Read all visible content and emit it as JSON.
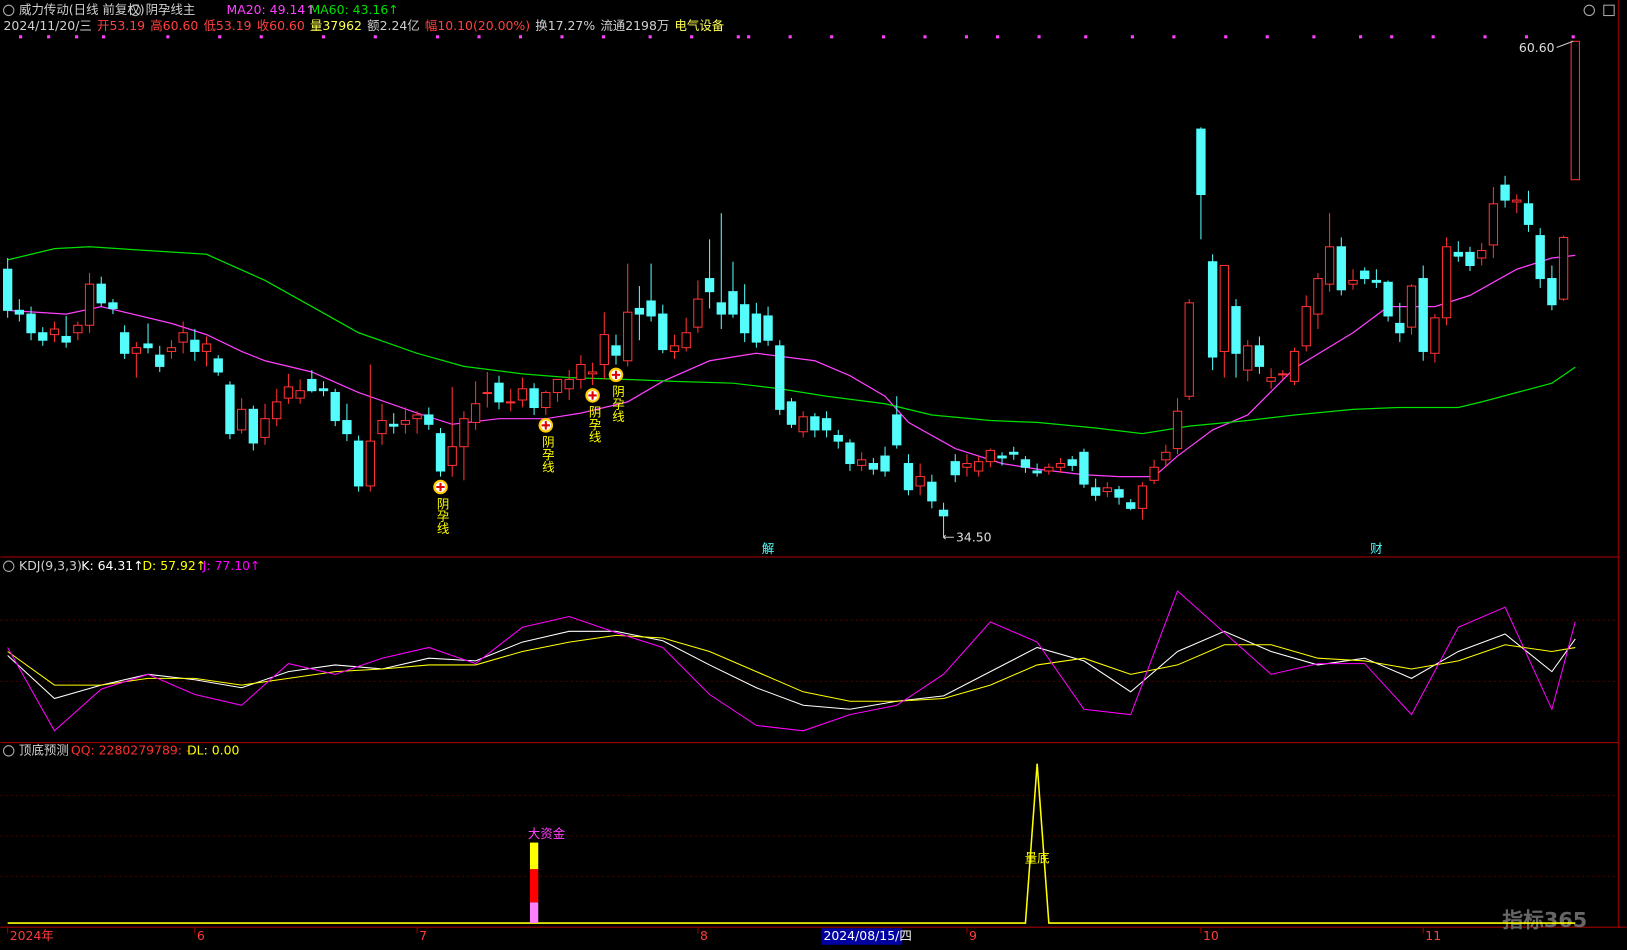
{
  "chart_data": [
    {
      "type": "candlestick",
      "title": "威力传动(日线 前复权)",
      "indicator": "阴孕线主",
      "info": [
        {
          "text": "2024/11/20/三",
          "color": "#d0d0d0"
        },
        {
          "text": "开53.19",
          "color": "#ff4040"
        },
        {
          "text": "高60.60",
          "color": "#ff4040"
        },
        {
          "text": "低53.19",
          "color": "#ff4040"
        },
        {
          "text": "收60.60",
          "color": "#ff4040"
        },
        {
          "text": "量37962",
          "color": "#ffff54"
        },
        {
          "text": "额2.24亿",
          "color": "#d0d0d0"
        },
        {
          "text": "幅10.10(20.00%)",
          "color": "#ff4040"
        },
        {
          "text": "换17.27%",
          "color": "#d0d0d0"
        },
        {
          "text": "流通2198万",
          "color": "#d0d0d0"
        },
        {
          "text": "电气设备",
          "color": "#ffff54"
        }
      ],
      "ylim": [
        33.5,
        61.7
      ],
      "up_color": "#ff3232",
      "down_color": "#54fcfc",
      "open": [
        48.4,
        46.2,
        46.0,
        45.0,
        44.9,
        44.8,
        45.0,
        45.4,
        47.6,
        46.6,
        45.0,
        43.9,
        44.4,
        43.8,
        44.0,
        44.5,
        44.6,
        44.0,
        43.6,
        42.2,
        39.8,
        40.9,
        39.4,
        40.4,
        41.5,
        41.5,
        42.5,
        42.0,
        41.8,
        40.3,
        39.2,
        36.8,
        39.6,
        40.1,
        40.1,
        40.4,
        40.6,
        39.6,
        37.9,
        38.9,
        40.2,
        41.8,
        42.3,
        41.3,
        41.4,
        42.0,
        41.0,
        41.8,
        42.0,
        42.5,
        42.8,
        43.3,
        44.3,
        43.5,
        46.3,
        46.7,
        46.0,
        44.0,
        44.2,
        45.3,
        47.9,
        46.6,
        47.2,
        46.5,
        46.0,
        45.9,
        44.3,
        41.3,
        39.7,
        40.5,
        40.4,
        39.5,
        39.1,
        37.9,
        38.0,
        38.4,
        40.6,
        38.0,
        36.8,
        37.0,
        35.5,
        38.1,
        37.8,
        37.6,
        38.1,
        38.4,
        38.6,
        38.2,
        37.6,
        37.6,
        37.8,
        38.2,
        38.6,
        36.7,
        36.5,
        36.6,
        35.9,
        35.6,
        37.1,
        38.2,
        38.8,
        41.6,
        55.9,
        48.8,
        44.0,
        46.4,
        43.0,
        44.3,
        42.4,
        42.8,
        42.4,
        44.3,
        46.0,
        47.6,
        49.6,
        47.6,
        48.3,
        47.8,
        47.7,
        45.5,
        45.3,
        47.9,
        43.9,
        45.8,
        49.3,
        49.3,
        49.0,
        49.7,
        52.9,
        52.0,
        51.9,
        50.2,
        47.9,
        46.8,
        53.19
      ],
      "high": [
        49.0,
        46.8,
        46.4,
        45.3,
        45.6,
        45.9,
        45.6,
        48.2,
        48.0,
        46.8,
        45.4,
        44.5,
        45.5,
        44.3,
        44.6,
        45.6,
        45.2,
        44.8,
        43.8,
        42.4,
        41.5,
        41.1,
        41.2,
        42.0,
        42.8,
        42.5,
        43.0,
        42.4,
        42.0,
        41.2,
        39.5,
        43.3,
        41.2,
        40.7,
        41.0,
        40.8,
        41.0,
        39.9,
        42.1,
        40.8,
        42.4,
        42.9,
        42.7,
        42.0,
        42.6,
        42.3,
        41.9,
        42.5,
        43.0,
        43.8,
        43.4,
        46.1,
        44.9,
        48.7,
        47.5,
        48.7,
        46.5,
        44.9,
        45.8,
        47.8,
        50.0,
        51.4,
        48.8,
        47.6,
        46.6,
        46.4,
        44.6,
        41.5,
        40.8,
        40.7,
        40.8,
        39.8,
        39.3,
        38.6,
        38.3,
        38.9,
        41.6,
        38.5,
        38.0,
        37.4,
        35.9,
        38.5,
        38.5,
        38.4,
        38.8,
        38.6,
        38.9,
        38.4,
        38.0,
        38.0,
        38.3,
        38.4,
        38.8,
        37.2,
        37.0,
        36.8,
        36.1,
        37.0,
        38.2,
        39.0,
        41.5,
        46.8,
        56.0,
        49.2,
        48.6,
        46.8,
        44.6,
        44.8,
        43.1,
        43.0,
        44.2,
        47.0,
        48.2,
        51.4,
        50.1,
        48.4,
        48.5,
        48.4,
        47.8,
        46.6,
        47.6,
        48.6,
        46.0,
        50.1,
        49.9,
        49.6,
        49.8,
        52.8,
        53.4,
        52.4,
        52.6,
        50.6,
        48.6,
        50.2,
        60.6
      ],
      "low": [
        45.8,
        45.6,
        44.6,
        44.3,
        44.5,
        44.2,
        44.6,
        45.0,
        46.4,
        46.0,
        43.6,
        42.6,
        43.9,
        42.9,
        43.6,
        43.9,
        43.5,
        43.2,
        42.7,
        39.3,
        39.6,
        38.7,
        39.0,
        40.0,
        41.2,
        41.2,
        41.8,
        41.6,
        40.0,
        39.2,
        36.5,
        36.5,
        39.0,
        39.6,
        39.6,
        39.6,
        39.8,
        37.3,
        37.3,
        37.1,
        39.8,
        41.0,
        40.9,
        40.8,
        41.0,
        40.6,
        40.6,
        41.3,
        41.4,
        42.0,
        42.2,
        42.5,
        43.3,
        43.2,
        44.6,
        45.6,
        43.9,
        43.6,
        44.0,
        45.0,
        46.3,
        45.2,
        45.8,
        44.5,
        44.2,
        44.3,
        40.6,
        39.9,
        39.4,
        39.4,
        39.4,
        38.8,
        37.6,
        37.6,
        37.4,
        37.3,
        38.8,
        36.3,
        36.3,
        35.6,
        34.5,
        37.0,
        37.3,
        37.3,
        37.8,
        37.9,
        38.2,
        37.5,
        37.3,
        37.4,
        37.5,
        37.6,
        36.7,
        36.0,
        36.2,
        35.8,
        35.5,
        35.0,
        36.9,
        37.8,
        38.5,
        41.4,
        50.0,
        43.0,
        42.6,
        42.6,
        42.4,
        42.8,
        42.0,
        42.5,
        42.2,
        44.0,
        45.2,
        47.2,
        47.0,
        47.3,
        47.6,
        47.4,
        45.6,
        44.5,
        44.9,
        43.5,
        43.4,
        45.4,
        48.8,
        48.3,
        48.6,
        49.0,
        51.7,
        51.4,
        50.4,
        47.4,
        46.2,
        46.7,
        53.19
      ],
      "close": [
        46.2,
        46.0,
        45.0,
        44.6,
        45.2,
        44.5,
        45.4,
        47.6,
        46.6,
        46.3,
        43.9,
        44.2,
        44.2,
        43.2,
        44.2,
        45.0,
        44.0,
        44.4,
        42.9,
        39.6,
        40.9,
        39.1,
        40.4,
        41.3,
        42.1,
        41.9,
        41.9,
        41.9,
        40.3,
        39.6,
        36.8,
        39.2,
        40.3,
        40.0,
        40.3,
        40.6,
        40.1,
        37.6,
        38.9,
        40.4,
        41.2,
        41.8,
        41.3,
        41.3,
        42.0,
        41.0,
        41.8,
        42.5,
        42.5,
        43.3,
        42.9,
        44.9,
        43.8,
        46.1,
        46.0,
        45.9,
        44.1,
        44.3,
        45.0,
        46.8,
        47.2,
        46.0,
        46.0,
        45.0,
        44.5,
        44.6,
        40.9,
        40.1,
        40.5,
        39.8,
        39.8,
        39.2,
        38.0,
        38.2,
        37.7,
        37.6,
        39.0,
        36.6,
        37.3,
        36.0,
        35.2,
        37.4,
        38.0,
        38.1,
        38.7,
        38.3,
        38.5,
        37.8,
        37.5,
        37.8,
        38.0,
        37.9,
        36.9,
        36.3,
        36.7,
        36.2,
        35.6,
        36.8,
        37.8,
        38.6,
        40.8,
        46.6,
        52.4,
        43.7,
        48.6,
        43.9,
        44.3,
        43.2,
        42.6,
        42.8,
        44.0,
        46.4,
        47.9,
        49.6,
        47.3,
        47.8,
        47.9,
        47.7,
        45.9,
        45.0,
        47.5,
        44.0,
        45.8,
        49.6,
        49.1,
        48.6,
        49.4,
        51.9,
        52.1,
        52.1,
        50.8,
        47.9,
        46.5,
        50.1,
        60.6
      ],
      "ma": [
        {
          "name": "MA20: 49.14↑",
          "color": "#ff40ff",
          "x": [
            0,
            5,
            8,
            14,
            17,
            20,
            22,
            26,
            30,
            35,
            38,
            42,
            46,
            49,
            53,
            56,
            60,
            64,
            69,
            72,
            75,
            77,
            81,
            85,
            88,
            92,
            95,
            98,
            100,
            103,
            106,
            110,
            115,
            118,
            122,
            125,
            129,
            131,
            132,
            134
          ],
          "values": [
            46.2,
            46.0,
            46.4,
            45.5,
            44.9,
            44.0,
            43.5,
            42.9,
            41.8,
            40.7,
            40.1,
            40.4,
            40.4,
            40.7,
            41.3,
            42.4,
            43.5,
            43.9,
            43.5,
            42.7,
            41.6,
            40.2,
            38.8,
            38.0,
            37.7,
            37.4,
            37.3,
            37.3,
            38.4,
            39.8,
            40.6,
            43.1,
            45.0,
            46.4,
            46.4,
            47.0,
            48.4,
            48.8,
            49.0,
            49.14
          ]
        },
        {
          "name": "MA60: 43.16↑",
          "color": "#00e000",
          "x": [
            0,
            4,
            7,
            17,
            22,
            26,
            30,
            35,
            39,
            44,
            48,
            53,
            57,
            62,
            66,
            70,
            75,
            79,
            84,
            88,
            93,
            97,
            101,
            106,
            110,
            115,
            119,
            124,
            126,
            129,
            132,
            134
          ],
          "values": [
            48.9,
            49.5,
            49.6,
            49.2,
            47.8,
            46.4,
            45.0,
            43.9,
            43.2,
            42.8,
            42.6,
            42.5,
            42.4,
            42.3,
            42.0,
            41.6,
            41.2,
            40.6,
            40.3,
            40.2,
            39.9,
            39.6,
            40.0,
            40.3,
            40.6,
            40.9,
            41.0,
            41.0,
            41.3,
            41.8,
            42.3,
            43.16
          ]
        }
      ],
      "signals": {
        "x": [
          37,
          46,
          50,
          52
        ],
        "label": "阴孕线"
      },
      "events": {
        "x": [
          65,
          117
        ],
        "labels": [
          "解",
          "财"
        ]
      },
      "extremes": {
        "x": [
          134,
          80
        ],
        "values": [
          60.6,
          34.5
        ],
        "value_labels": [
          "60.60",
          "34.50"
        ]
      },
      "date_ticks": {
        "x": [
          0,
          16,
          35,
          59,
          82,
          102,
          121
        ],
        "labels": [
          "2024年",
          "6",
          "7",
          "8",
          "9",
          "10",
          "11"
        ]
      },
      "highlight_date": {
        "x": 70,
        "label": "2024/08/15/四"
      }
    },
    {
      "type": "line",
      "title": "KDJ(9,3,3)",
      "ylim": [
        -12,
        113
      ],
      "x": [
        0,
        4,
        8,
        12,
        16,
        20,
        24,
        28,
        32,
        36,
        40,
        44,
        48,
        52,
        56,
        60,
        64,
        68,
        72,
        76,
        80,
        84,
        88,
        92,
        96,
        100,
        104,
        108,
        112,
        116,
        120,
        124,
        128,
        132,
        134
      ],
      "series": [
        {
          "name": "K: 64.31↑",
          "color": "#ffffff",
          "values": [
            52,
            20,
            30,
            38,
            34,
            28,
            40,
            45,
            42,
            50,
            48,
            62,
            70,
            70,
            63,
            45,
            28,
            15,
            12,
            18,
            22,
            40,
            58,
            48,
            25,
            55,
            70,
            55,
            45,
            50,
            35,
            55,
            68,
            40,
            64.31
          ]
        },
        {
          "name": "D: 57.92↑",
          "color": "#ffff00",
          "values": [
            55,
            30,
            30,
            35,
            35,
            30,
            35,
            40,
            42,
            45,
            45,
            55,
            62,
            67,
            65,
            55,
            40,
            25,
            18,
            18,
            20,
            30,
            45,
            50,
            38,
            45,
            60,
            60,
            50,
            48,
            42,
            48,
            60,
            55,
            57.92
          ]
        },
        {
          "name": "J: 77.10↑",
          "color": "#ff00ff",
          "values": [
            58,
            -4,
            27,
            38,
            23,
            15,
            46,
            38,
            50,
            58,
            46,
            73,
            81,
            69,
            58,
            23,
            0,
            -4,
            8,
            15,
            38,
            77,
            62,
            12,
            8,
            100,
            69,
            38,
            46,
            46,
            8,
            73,
            88,
            12,
            77.1
          ]
        }
      ]
    },
    {
      "type": "indicator",
      "title": "顶底预测",
      "labels": [
        {
          "text": "QQ: 2280279789: -",
          "color": "#ff3030"
        },
        {
          "text": "DL: 0.00",
          "color": "#ffff00"
        }
      ],
      "ylim": [
        0,
        100
      ],
      "line": {
        "color": "#ffff00",
        "label": "量底",
        "x": [
          0,
          87,
          88,
          89,
          134
        ],
        "values": [
          0,
          0,
          96,
          0,
          0
        ]
      },
      "stacked_bar": {
        "x": 45,
        "values": [
          12.5,
          20,
          16
        ],
        "colors": [
          "#ff80ff",
          "#ff0000",
          "#ffff00"
        ],
        "label": "大资金",
        "label_color": "#ff40ff"
      }
    }
  ],
  "watermark": "指标365"
}
